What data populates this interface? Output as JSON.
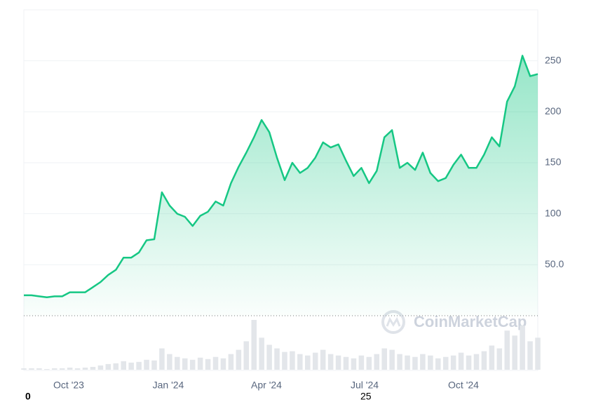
{
  "chart_data": {
    "type": "line",
    "values": [
      20,
      20,
      19,
      18,
      19,
      19,
      23,
      23,
      23,
      28,
      33,
      40,
      45,
      57,
      57,
      62,
      74,
      75,
      121,
      108,
      100,
      97,
      88,
      98,
      102,
      112,
      108,
      130,
      146,
      160,
      175,
      192,
      180,
      155,
      133,
      150,
      140,
      145,
      155,
      170,
      165,
      168,
      152,
      137,
      145,
      130,
      142,
      175,
      182,
      145,
      150,
      143,
      160,
      140,
      132,
      135,
      148,
      158,
      145,
      145,
      158,
      175,
      166,
      210,
      225,
      255,
      235,
      237
    ],
    "volume": [
      2,
      2,
      2,
      1,
      2,
      2,
      3,
      2,
      3,
      4,
      6,
      8,
      9,
      12,
      10,
      11,
      14,
      13,
      30,
      22,
      18,
      16,
      14,
      17,
      15,
      18,
      16,
      22,
      28,
      40,
      70,
      45,
      35,
      30,
      25,
      26,
      22,
      20,
      24,
      28,
      22,
      20,
      18,
      16,
      20,
      18,
      22,
      30,
      28,
      22,
      20,
      18,
      22,
      20,
      16,
      18,
      20,
      24,
      20,
      22,
      26,
      34,
      30,
      55,
      48,
      62,
      40,
      45
    ],
    "color": "#16c784",
    "xtick_labels": [
      "Oct '23",
      "Jan '24",
      "Apr '24",
      "Jul '24",
      "Oct '24"
    ],
    "ylim": [
      0,
      300
    ],
    "yticks": [
      {
        "value": 50,
        "label": "50.0"
      },
      100,
      150,
      200,
      250
    ],
    "grid": true,
    "watermark": "CoinMarketCap",
    "footer_labels": [
      "0",
      "25"
    ]
  }
}
